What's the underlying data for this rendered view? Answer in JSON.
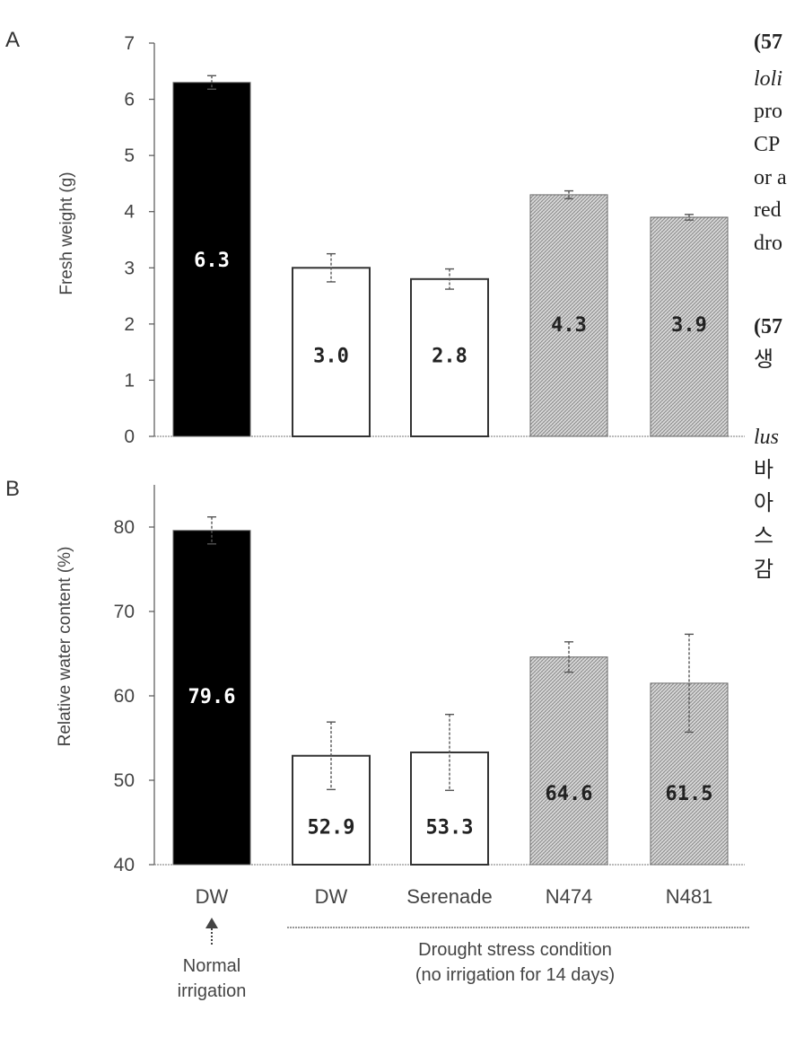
{
  "chart_data": [
    {
      "panel": "A",
      "type": "bar",
      "ylabel": "Fresh weight (g)",
      "ylim": [
        0,
        7
      ],
      "yticks": [
        "0",
        "1",
        "2",
        "3",
        "4",
        "5",
        "6",
        "7"
      ],
      "categories": [
        "DW",
        "DW",
        "Serenade",
        "N474",
        "N481"
      ],
      "values": [
        6.3,
        3.0,
        2.8,
        4.3,
        3.9
      ],
      "value_labels": [
        "6.3",
        "3.0",
        "2.8",
        "4.3",
        "3.9"
      ],
      "errors": [
        0.12,
        0.25,
        0.18,
        0.07,
        0.05
      ],
      "fills": [
        "black",
        "white",
        "white",
        "hatched",
        "hatched"
      ]
    },
    {
      "panel": "B",
      "type": "bar",
      "ylabel": "Relative water content (%)",
      "ylim": [
        40,
        85
      ],
      "yticks": [
        "40",
        "50",
        "60",
        "70",
        "80"
      ],
      "categories": [
        "DW",
        "DW",
        "Serenade",
        "N474",
        "N481"
      ],
      "values": [
        79.6,
        52.9,
        53.3,
        64.6,
        61.5
      ],
      "value_labels": [
        "79.6",
        "52.9",
        "53.3",
        "64.6",
        "61.5"
      ],
      "errors": [
        1.6,
        4.0,
        4.5,
        1.8,
        5.8
      ],
      "fills": [
        "black",
        "white",
        "white",
        "hatched",
        "hatched"
      ]
    }
  ],
  "annotations": {
    "normal": [
      "Normal",
      "irrigation"
    ],
    "drought": [
      "Drought stress condition",
      "(no irrigation for 14 days)"
    ]
  },
  "side_text": {
    "lines": [
      "(57",
      "loli",
      "pro",
      "CP",
      "or a",
      "red",
      "dro",
      "(57",
      "생",
      "lus",
      "바",
      "아",
      "스",
      "감"
    ]
  },
  "colors": {
    "black_bar": "#000000",
    "hatch": "#9a9a9a",
    "axis": "#555555"
  }
}
